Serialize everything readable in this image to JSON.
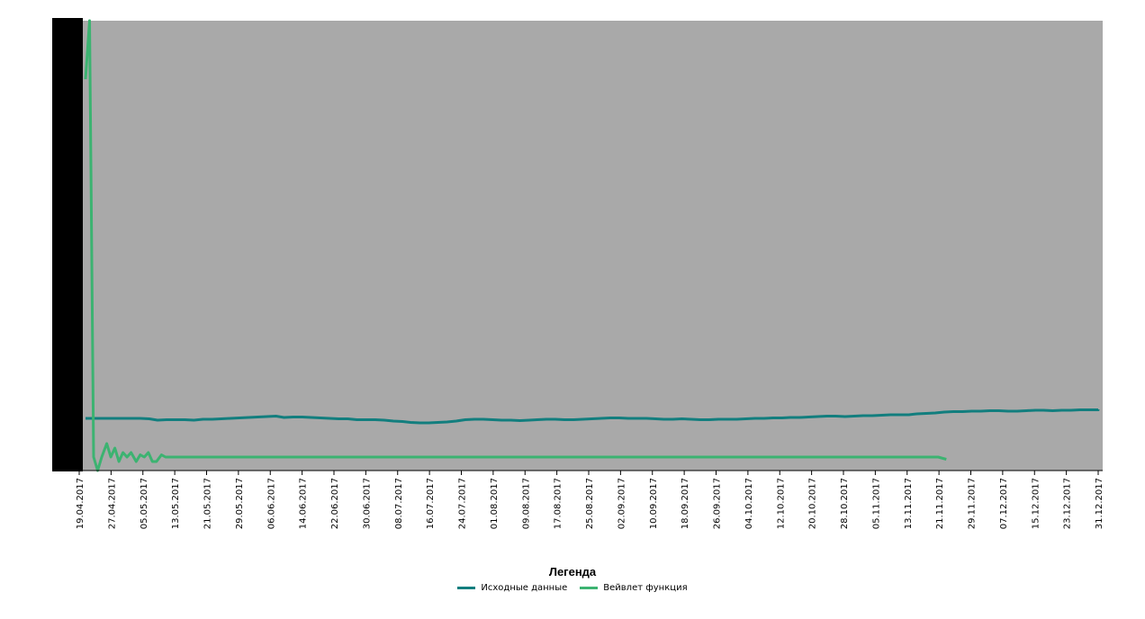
{
  "colors": {
    "plot_bg": "#a9a9a9",
    "series_raw": "#127e7e",
    "series_wavelet": "#3cb371",
    "axis": "#000000"
  },
  "legend": {
    "title": "Легенда",
    "items": [
      {
        "label": "Исходные данные",
        "color": "#127e7e"
      },
      {
        "label": "Вейвлет функция",
        "color": "#3cb371"
      }
    ]
  },
  "chart_data": {
    "type": "line",
    "x_ticks": [
      "19.04.2017",
      "27.04.2017",
      "05.05.2017",
      "13.05.2017",
      "21.05.2017",
      "29.05.2017",
      "06.06.2017",
      "14.06.2017",
      "22.06.2017",
      "30.06.2017",
      "08.07.2017",
      "16.07.2017",
      "24.07.2017",
      "01.08.2017",
      "09.08.2017",
      "17.08.2017",
      "25.08.2017",
      "02.09.2017",
      "10.09.2017",
      "18.09.2017",
      "26.09.2017",
      "04.10.2017",
      "12.10.2017",
      "20.10.2017",
      "28.10.2017",
      "05.11.2017",
      "13.11.2017",
      "21.11.2017",
      "29.11.2017",
      "07.12.2017",
      "15.12.2017",
      "23.12.2017",
      "31.12.2017"
    ],
    "x_range": [
      "19.04.2017",
      "31.12.2017"
    ],
    "ylim": [
      0,
      1
    ],
    "grid": false,
    "legend_position": "bottom-center",
    "series": [
      {
        "name": "Исходные данные",
        "color": "#127e7e",
        "values": [
          0.116,
          0.116,
          0.116,
          0.116,
          0.116,
          0.116,
          0.116,
          0.115,
          0.112,
          0.113,
          0.113,
          0.113,
          0.112,
          0.114,
          0.114,
          0.115,
          0.116,
          0.117,
          0.118,
          0.119,
          0.12,
          0.121,
          0.118,
          0.119,
          0.119,
          0.118,
          0.117,
          0.116,
          0.115,
          0.115,
          0.113,
          0.113,
          0.113,
          0.112,
          0.11,
          0.109,
          0.107,
          0.106,
          0.106,
          0.107,
          0.108,
          0.11,
          0.113,
          0.114,
          0.114,
          0.113,
          0.112,
          0.112,
          0.111,
          0.112,
          0.113,
          0.114,
          0.114,
          0.113,
          0.113,
          0.114,
          0.115,
          0.116,
          0.117,
          0.117,
          0.116,
          0.116,
          0.116,
          0.115,
          0.114,
          0.114,
          0.115,
          0.114,
          0.113,
          0.113,
          0.114,
          0.114,
          0.114,
          0.115,
          0.116,
          0.116,
          0.117,
          0.117,
          0.118,
          0.118,
          0.119,
          0.12,
          0.121,
          0.121,
          0.12,
          0.121,
          0.122,
          0.122,
          0.123,
          0.124,
          0.124,
          0.124,
          0.126,
          0.127,
          0.128,
          0.13,
          0.131,
          0.131,
          0.132,
          0.132,
          0.133,
          0.133,
          0.132,
          0.132,
          0.133,
          0.134,
          0.134,
          0.133,
          0.134,
          0.134,
          0.135,
          0.135,
          0.135,
          0.136,
          0.136
        ],
        "x_fraction": [
          0.0,
          0.009,
          0.018,
          0.027,
          0.036,
          0.045,
          0.054,
          0.063,
          0.071,
          0.08,
          0.089,
          0.098,
          0.107,
          0.116,
          0.125,
          0.134,
          0.143,
          0.152,
          0.161,
          0.17,
          0.179,
          0.188,
          0.196,
          0.205,
          0.214,
          0.223,
          0.232,
          0.241,
          0.25,
          0.259,
          0.268,
          0.277,
          0.286,
          0.295,
          0.304,
          0.313,
          0.321,
          0.33,
          0.339,
          0.348,
          0.357,
          0.366,
          0.375,
          0.384,
          0.393,
          0.402,
          0.411,
          0.42,
          0.429,
          0.438,
          0.446,
          0.455,
          0.464,
          0.473,
          0.482,
          0.491,
          0.5,
          0.509,
          0.518,
          0.527,
          0.536,
          0.545,
          0.554,
          0.563,
          0.571,
          0.58,
          0.589,
          0.598,
          0.607,
          0.616,
          0.625,
          0.634,
          0.643,
          0.652,
          0.661,
          0.67,
          0.679,
          0.688,
          0.696,
          0.705,
          0.714,
          0.723,
          0.732,
          0.741,
          0.75,
          0.759,
          0.768,
          0.777,
          0.786,
          0.795,
          0.804,
          0.813,
          0.821,
          0.83,
          0.839,
          0.848,
          0.857,
          0.866,
          0.875,
          0.884,
          0.893,
          0.902,
          0.911,
          0.92,
          0.929,
          0.938,
          0.946,
          0.955,
          0.964,
          0.973,
          0.982,
          0.991,
          1.0,
          1.0,
          1.0
        ]
      },
      {
        "name": "Вейвлет функция",
        "color": "#3cb371",
        "values": [
          0.87,
          1.0,
          0.03,
          0.0,
          0.03,
          0.06,
          0.03,
          0.05,
          0.02,
          0.04,
          0.03,
          0.04,
          0.02,
          0.035,
          0.03,
          0.04,
          0.02,
          0.02,
          0.035,
          0.03,
          0.03,
          0.03,
          0.03,
          0.03,
          0.03,
          0.03,
          0.03,
          0.03,
          0.03,
          0.03,
          0.03,
          0.03,
          0.03,
          0.03,
          0.03,
          0.03,
          0.03,
          0.03,
          0.03,
          0.03,
          0.03,
          0.03,
          0.03,
          0.03,
          0.03,
          0.03,
          0.03,
          0.03,
          0.03,
          0.03,
          0.03,
          0.03,
          0.03,
          0.03,
          0.03,
          0.03,
          0.03,
          0.03,
          0.03,
          0.03,
          0.03,
          0.03,
          0.03,
          0.03,
          0.03,
          0.03,
          0.03,
          0.03,
          0.03,
          0.03,
          0.03,
          0.03,
          0.03,
          0.03,
          0.03,
          0.03,
          0.03,
          0.03,
          0.03,
          0.03,
          0.03,
          0.03,
          0.03,
          0.03,
          0.03,
          0.03,
          0.03,
          0.03,
          0.03,
          0.03,
          0.03,
          0.03,
          0.03,
          0.03,
          0.03,
          0.03,
          0.03,
          0.03,
          0.03,
          0.03,
          0.03,
          0.03,
          0.03,
          0.03,
          0.03,
          0.03,
          0.03,
          0.03,
          0.03,
          0.03,
          0.03,
          0.03,
          0.03,
          0.03,
          0.025
        ],
        "x_fraction": [
          0.0,
          0.004,
          0.008,
          0.012,
          0.016,
          0.021,
          0.025,
          0.029,
          0.033,
          0.037,
          0.041,
          0.045,
          0.05,
          0.054,
          0.058,
          0.062,
          0.066,
          0.07,
          0.075,
          0.079,
          0.083,
          0.087,
          0.091,
          0.095,
          0.1,
          0.108,
          0.117,
          0.125,
          0.133,
          0.142,
          0.15,
          0.158,
          0.167,
          0.175,
          0.183,
          0.192,
          0.2,
          0.208,
          0.217,
          0.225,
          0.233,
          0.242,
          0.25,
          0.258,
          0.267,
          0.275,
          0.283,
          0.292,
          0.3,
          0.308,
          0.317,
          0.325,
          0.333,
          0.342,
          0.35,
          0.358,
          0.367,
          0.375,
          0.383,
          0.392,
          0.4,
          0.408,
          0.417,
          0.425,
          0.433,
          0.442,
          0.45,
          0.458,
          0.467,
          0.475,
          0.483,
          0.492,
          0.5,
          0.508,
          0.517,
          0.525,
          0.533,
          0.542,
          0.55,
          0.558,
          0.567,
          0.575,
          0.583,
          0.592,
          0.6,
          0.608,
          0.617,
          0.625,
          0.633,
          0.642,
          0.65,
          0.658,
          0.667,
          0.675,
          0.683,
          0.692,
          0.7,
          0.708,
          0.717,
          0.725,
          0.733,
          0.742,
          0.75,
          0.758,
          0.767,
          0.775,
          0.783,
          0.792,
          0.8,
          0.808,
          0.817,
          0.825,
          0.833,
          0.842,
          0.85
        ]
      }
    ]
  }
}
